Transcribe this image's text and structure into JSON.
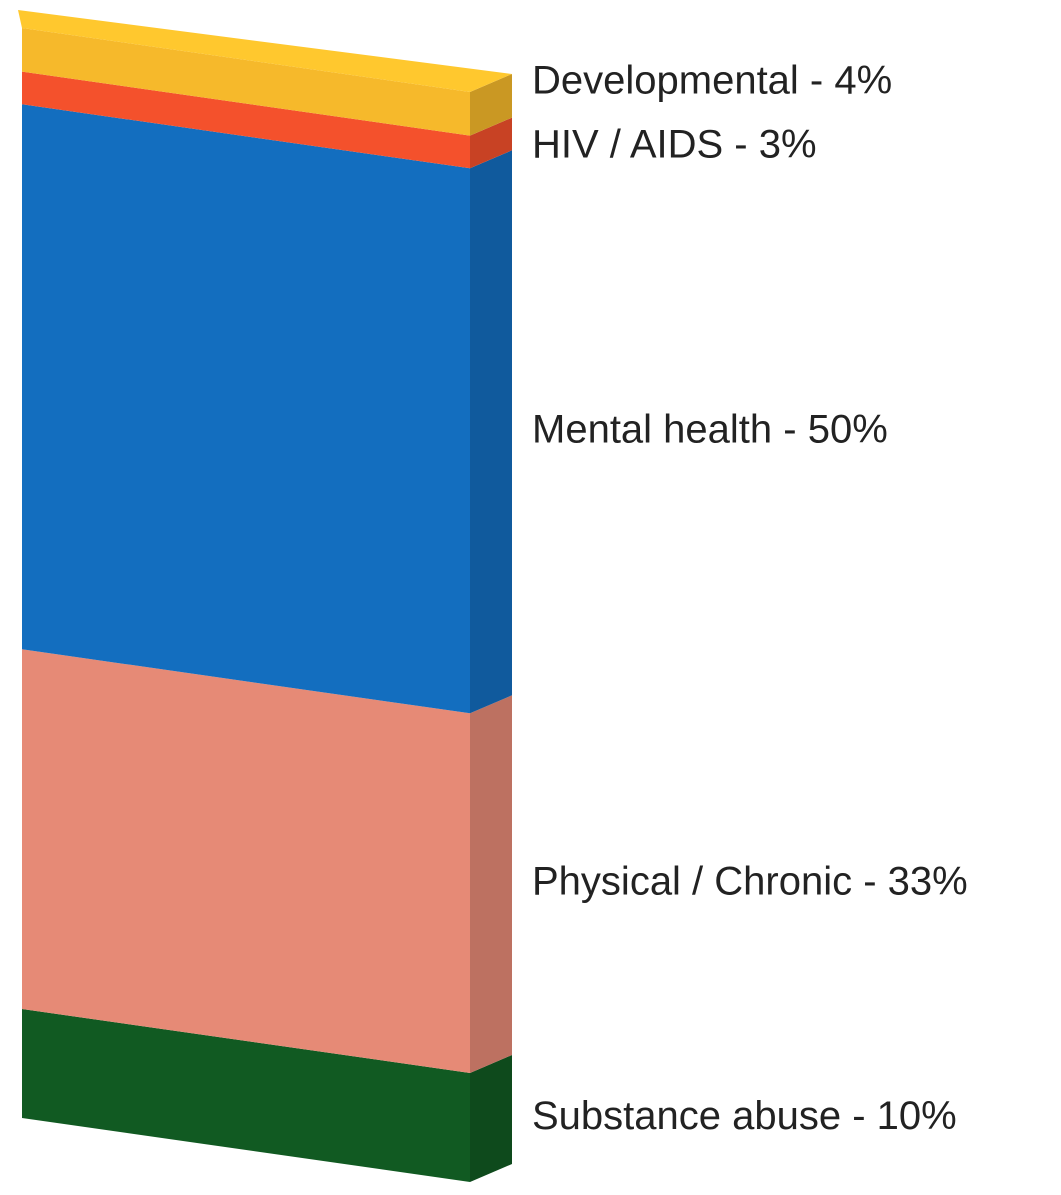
{
  "chart_data": {
    "type": "bar3d-stacked",
    "values": [
      4,
      3,
      50,
      33,
      10
    ],
    "value_labels": [
      "Developmental - 4%",
      "HIV / AIDS - 3%",
      "Mental health - 50%",
      "Physical / Chronic - 33%",
      "Substance abuse - 10%"
    ],
    "colors": [
      "#f6b92b",
      "#f4512c",
      "#136ebf",
      "#e68a76",
      "#115a22"
    ]
  }
}
